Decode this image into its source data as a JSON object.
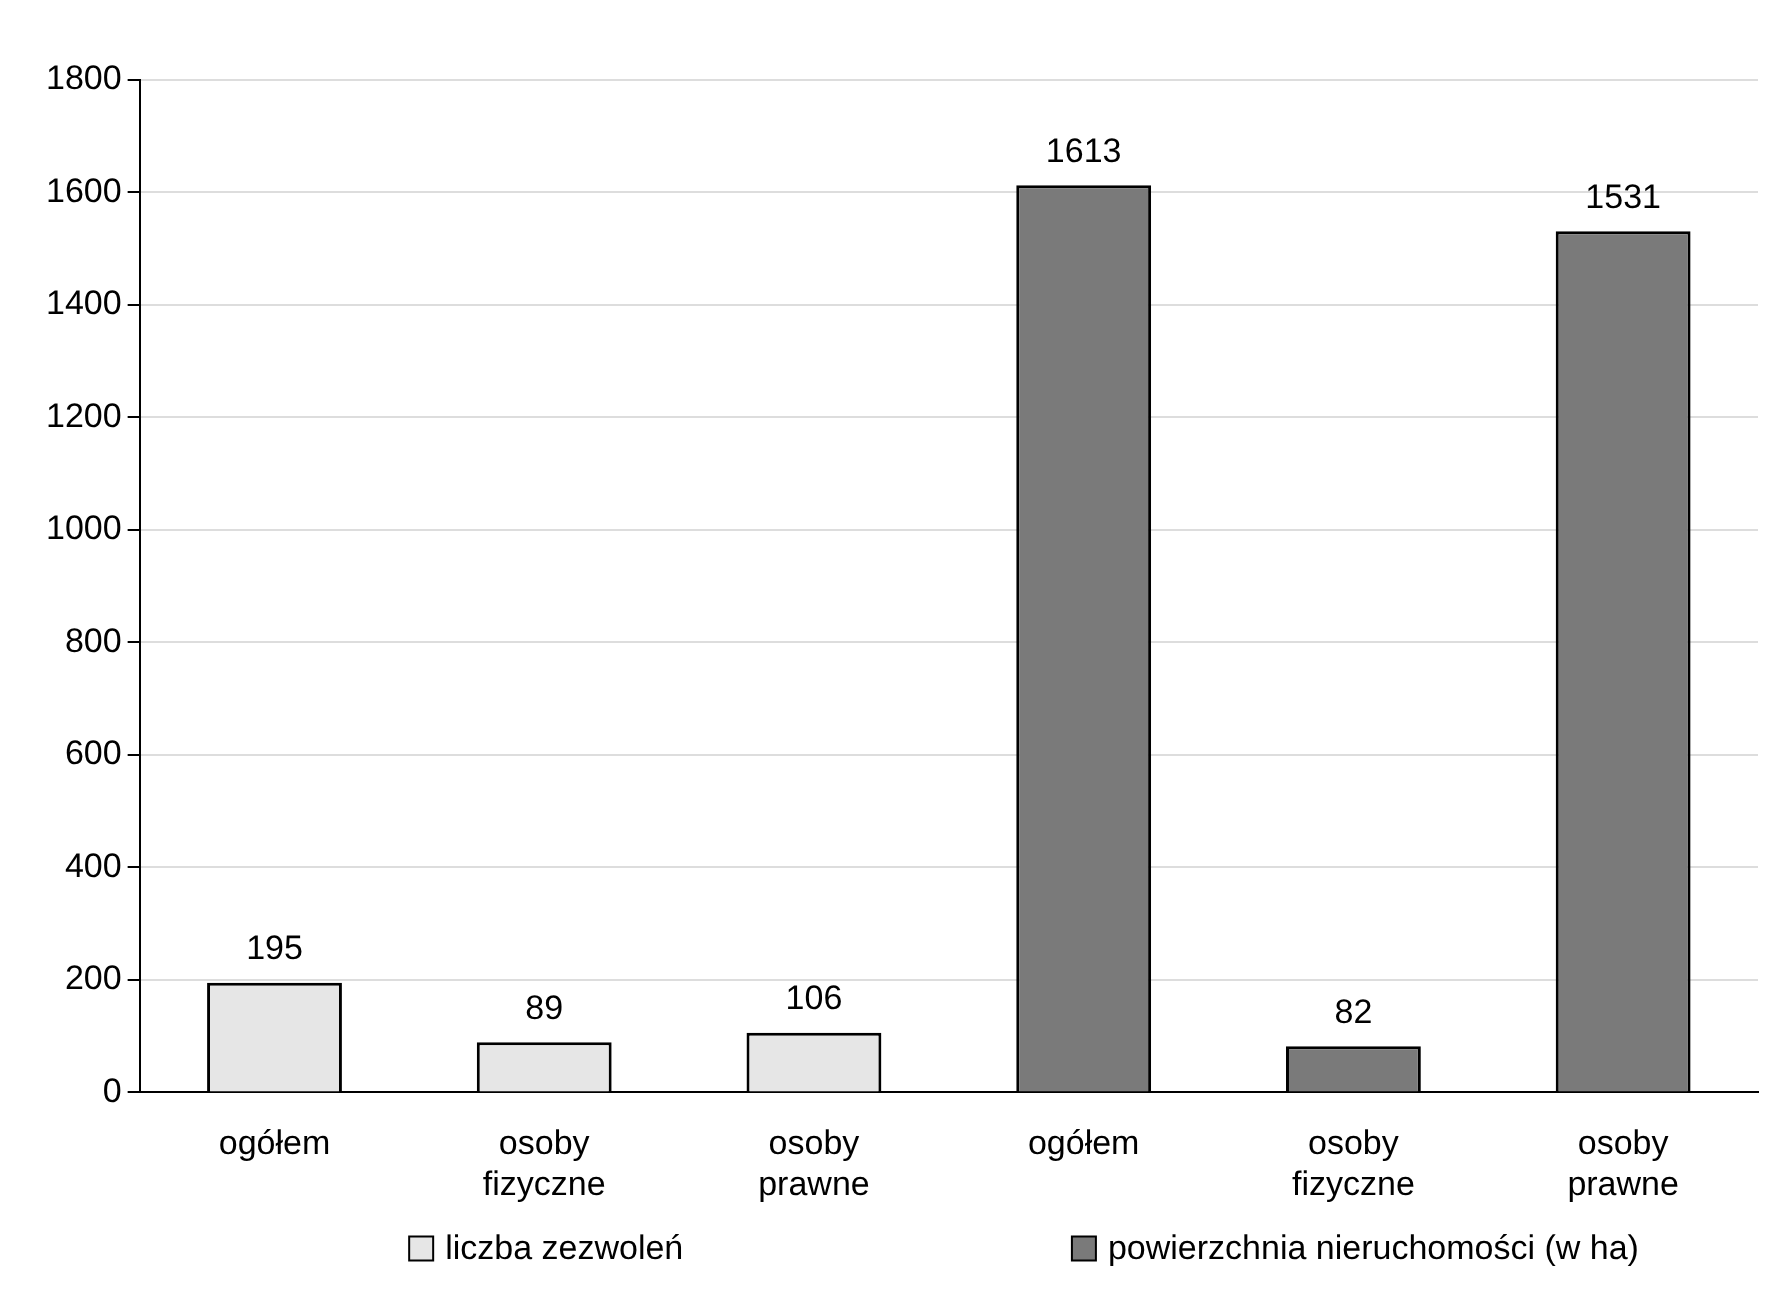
{
  "chart_data": {
    "type": "bar",
    "categories": [
      "ogółem",
      "osoby fizyczne",
      "osoby prawne",
      "ogółem",
      "osoby fizyczne",
      "osoby prawne"
    ],
    "series": [
      {
        "name": "liczba zezwoleń",
        "color": "#e6e6e6",
        "values": [
          195,
          89,
          106,
          null,
          null,
          null
        ]
      },
      {
        "name": "powierzchnia nieruchomości (w ha)",
        "color": "#7a7a7a",
        "values": [
          null,
          null,
          null,
          1613,
          82,
          1531
        ]
      }
    ],
    "ylim": [
      0,
      1800
    ],
    "yticks": [
      0,
      200,
      400,
      600,
      800,
      1000,
      1200,
      1400,
      1600,
      1800
    ],
    "grid": "y",
    "data_labels": true,
    "legend": "bottom"
  }
}
